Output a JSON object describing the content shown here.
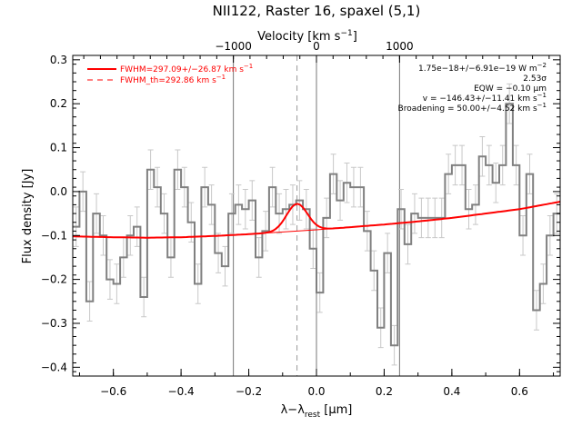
{
  "chart_data": {
    "type": "line",
    "title": "NII122, Raster 16, spaxel (5,1)",
    "xlabel": "λ−λrest [μm]",
    "xlabel_main": "λ−λ",
    "xlabel_sub": "rest",
    "xlabel_unit": " [μm]",
    "ylabel": "Flux density [Jy]",
    "top_xlabel": "Velocity [km s⁻¹]",
    "top_xlabel_main": "Velocity [km s",
    "top_xlabel_sup": "−1",
    "top_xlabel_end": "]",
    "xlim": [
      -0.72,
      0.72
    ],
    "ylim": [
      -0.42,
      0.31
    ],
    "xticks": [
      -0.6,
      -0.4,
      -0.2,
      0.0,
      0.2,
      0.4,
      0.6
    ],
    "xtick_labels": [
      "−0.6",
      "−0.4",
      "−0.2",
      "0.0",
      "0.2",
      "0.4",
      "0.6"
    ],
    "yticks": [
      -0.4,
      -0.3,
      -0.2,
      -0.1,
      0.0,
      0.1,
      0.2,
      0.3
    ],
    "ytick_labels": [
      "−0.4",
      "−0.3",
      "−0.2",
      "−0.1",
      "0.0",
      "0.1",
      "0.2",
      "0.3"
    ],
    "top_ticks_um": [
      -0.2455,
      0.0,
      0.2455
    ],
    "top_tick_labels": [
      "−1000",
      "0",
      "1000"
    ],
    "vertical_lines": [
      -0.2455,
      0.0,
      0.2455
    ],
    "line_center_dashed": -0.0575,
    "grid": false,
    "legend": {
      "position": "top-left",
      "entries": [
        {
          "label": "FWHM=297.09+/−26.87 km s",
          "sup": "−1",
          "style": "solid",
          "color": "#ff0000"
        },
        {
          "label": "FWHM_th=292.86 km s",
          "sup": "−1",
          "style": "dashed",
          "color": "#ff0000"
        }
      ]
    },
    "annotations": [
      {
        "text": "1.75e−18+/−6.91e−19 W m",
        "sup": "−2"
      },
      {
        "text": "2.53σ",
        "sup": ""
      },
      {
        "text": "EQW = −0.10 μm",
        "sup": ""
      },
      {
        "text": "v = −146.43+/−11.41 km s",
        "sup": "−1"
      },
      {
        "text": "Broadening = 50.00+/−4.52 km s",
        "sup": "−1"
      }
    ],
    "series": [
      {
        "style": "steps",
        "color": "#808080",
        "x": [
          -0.71,
          -0.69,
          -0.67,
          -0.65,
          -0.63,
          -0.61,
          -0.59,
          -0.57,
          -0.55,
          -0.53,
          -0.51,
          -0.49,
          -0.47,
          -0.45,
          -0.43,
          -0.41,
          -0.39,
          -0.37,
          -0.35,
          -0.33,
          -0.31,
          -0.29,
          -0.27,
          -0.25,
          -0.23,
          -0.21,
          -0.19,
          -0.17,
          -0.15,
          -0.13,
          -0.11,
          -0.09,
          -0.07,
          -0.05,
          -0.03,
          -0.01,
          0.01,
          0.03,
          0.05,
          0.07,
          0.09,
          0.11,
          0.13,
          0.15,
          0.17,
          0.19,
          0.21,
          0.23,
          0.25,
          0.27,
          0.29,
          0.31,
          0.33,
          0.35,
          0.37,
          0.39,
          0.41,
          0.43,
          0.45,
          0.47,
          0.49,
          0.51,
          0.53,
          0.55,
          0.57,
          0.59,
          0.61,
          0.63,
          0.65,
          0.67,
          0.69,
          0.71
        ],
        "y": [
          -0.08,
          0.0,
          -0.25,
          -0.05,
          -0.1,
          -0.2,
          -0.21,
          -0.15,
          -0.1,
          -0.08,
          -0.24,
          0.05,
          0.01,
          -0.05,
          -0.15,
          0.05,
          0.01,
          -0.07,
          -0.21,
          0.01,
          -0.03,
          -0.14,
          -0.17,
          -0.05,
          -0.03,
          -0.04,
          -0.02,
          -0.15,
          -0.09,
          0.01,
          -0.05,
          -0.04,
          -0.03,
          -0.02,
          -0.04,
          -0.13,
          -0.23,
          -0.06,
          0.04,
          -0.02,
          0.02,
          0.01,
          0.01,
          -0.09,
          -0.18,
          -0.31,
          -0.14,
          -0.35,
          -0.04,
          -0.12,
          -0.05,
          -0.06,
          -0.06,
          -0.06,
          -0.06,
          0.04,
          0.06,
          0.06,
          -0.04,
          -0.03,
          0.08,
          0.06,
          0.02,
          0.06,
          0.2,
          0.06,
          -0.1,
          0.04,
          -0.27,
          -0.21,
          -0.1,
          -0.05
        ],
        "yerr": 0.045
      },
      {
        "style": "line",
        "color": "#ff0000",
        "description": "continuum",
        "x": [
          -0.72,
          -0.6,
          -0.5,
          -0.4,
          -0.3,
          -0.2,
          -0.1,
          0.0,
          0.1,
          0.2,
          0.3,
          0.4,
          0.5,
          0.6,
          0.72
        ],
        "y": [
          -0.102,
          -0.104,
          -0.105,
          -0.104,
          -0.101,
          -0.097,
          -0.092,
          -0.087,
          -0.081,
          -0.075,
          -0.068,
          -0.06,
          -0.05,
          -0.04,
          -0.023
        ]
      },
      {
        "style": "gaussian",
        "color": "#ff0000",
        "center": -0.0575,
        "amplitude": 0.062,
        "sigma": 0.031
      }
    ]
  }
}
